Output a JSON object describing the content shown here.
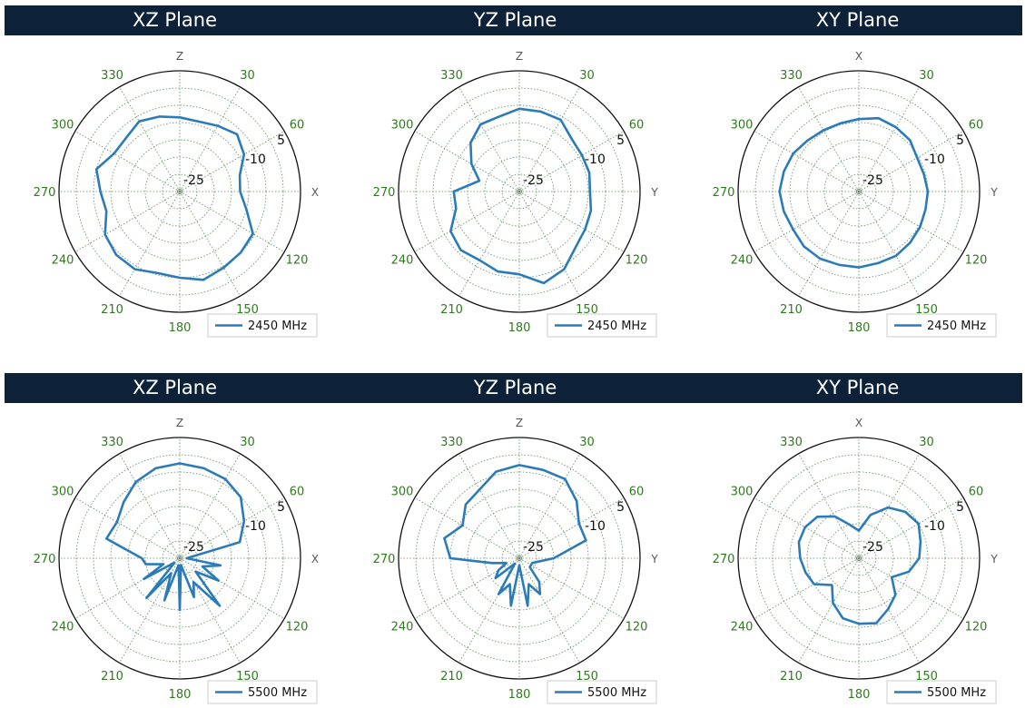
{
  "bands": [
    {
      "titles": [
        "XZ Plane",
        "YZ Plane",
        "XY Plane"
      ]
    },
    {
      "titles": [
        "XZ Plane",
        "YZ Plane",
        "XY Plane"
      ]
    }
  ],
  "colors": {
    "band": "#0d2238",
    "trace": "#2b7bb9",
    "tick": "#2f7a1f",
    "grid": "#5f8a5f"
  },
  "chart_data": [
    {
      "type": "line",
      "plane": "XZ",
      "top_axis": "Z",
      "right_axis": "X",
      "series": [
        {
          "name": "2450 MHz",
          "angles": [
            0,
            15,
            30,
            45,
            60,
            75,
            90,
            105,
            120,
            135,
            150,
            165,
            180,
            195,
            210,
            225,
            240,
            255,
            270,
            285,
            300,
            315,
            330,
            345
          ],
          "values": [
            -8.5,
            -9,
            -8,
            -6.5,
            -8.5,
            -12,
            -12.5,
            -10,
            -5.5,
            -5,
            -4.5,
            -3.5,
            -5,
            -5.5,
            -4,
            -4,
            -5,
            -8,
            -7,
            -5,
            -8,
            -8,
            -6.5,
            -7.5
          ]
        }
      ],
      "angular_ticks": [
        0,
        30,
        60,
        90,
        120,
        150,
        180,
        210,
        240,
        270,
        300,
        330
      ],
      "angular_tick_labels": [
        "",
        "30",
        "60",
        "",
        "120",
        "150",
        "180",
        "210",
        "240",
        "270",
        "300",
        "330"
      ],
      "radial_labels": [
        "-25",
        "-10",
        "5"
      ],
      "rlim": [
        -30,
        5
      ],
      "grid": true,
      "legend": "bottom-right"
    },
    {
      "type": "line",
      "plane": "YZ",
      "top_axis": "Z",
      "right_axis": "Y",
      "series": [
        {
          "name": "2450 MHz",
          "angles": [
            0,
            15,
            30,
            45,
            60,
            75,
            90,
            105,
            120,
            135,
            150,
            165,
            180,
            195,
            210,
            225,
            240,
            255,
            270,
            285,
            300,
            315,
            330,
            345
          ],
          "values": [
            -6,
            -6,
            -6,
            -8.5,
            -9,
            -9,
            -9.5,
            -8.5,
            -8,
            -7,
            -4,
            -2.5,
            -6,
            -6,
            -7,
            -6,
            -7,
            -11,
            -11,
            -18,
            -14,
            -10,
            -7.5,
            -7.5
          ]
        }
      ],
      "angular_ticks": [
        0,
        30,
        60,
        90,
        120,
        150,
        180,
        210,
        240,
        270,
        300,
        330
      ],
      "angular_tick_labels": [
        "",
        "30",
        "60",
        "",
        "120",
        "150",
        "180",
        "210",
        "240",
        "270",
        "300",
        "330"
      ],
      "radial_labels": [
        "-25",
        "-10",
        "5"
      ],
      "rlim": [
        -30,
        5
      ],
      "grid": true,
      "legend": "bottom-right"
    },
    {
      "type": "line",
      "plane": "XY",
      "top_axis": "X",
      "right_axis": "Y",
      "series": [
        {
          "name": "2450 MHz",
          "angles": [
            0,
            15,
            30,
            45,
            60,
            75,
            90,
            105,
            120,
            135,
            150,
            165,
            180,
            195,
            210,
            225,
            240,
            255,
            270,
            285,
            300,
            315,
            330,
            345
          ],
          "values": [
            -9,
            -8,
            -8.5,
            -9,
            -10.5,
            -10.5,
            -10,
            -10,
            -9.5,
            -9,
            -8.5,
            -8.5,
            -8,
            -8,
            -7.5,
            -7.5,
            -8,
            -7.5,
            -7,
            -7.5,
            -8,
            -9,
            -9.5,
            -9.5
          ]
        }
      ],
      "angular_ticks": [
        0,
        30,
        60,
        90,
        120,
        150,
        180,
        210,
        240,
        270,
        300,
        330
      ],
      "angular_tick_labels": [
        "",
        "30",
        "60",
        "",
        "120",
        "150",
        "180",
        "210",
        "240",
        "270",
        "300",
        "330"
      ],
      "radial_labels": [
        "-25",
        "-10",
        "5"
      ],
      "rlim": [
        -30,
        5
      ],
      "grid": true,
      "legend": "bottom-right"
    },
    {
      "type": "line",
      "plane": "XZ",
      "top_axis": "Z",
      "right_axis": "X",
      "series": [
        {
          "name": "5500 MHz",
          "angles": [
            0,
            15,
            30,
            45,
            60,
            75,
            90,
            100,
            110,
            120,
            130,
            140,
            150,
            160,
            170,
            180,
            190,
            200,
            210,
            220,
            230,
            240,
            250,
            260,
            270,
            285,
            300,
            315,
            330,
            345
          ],
          "values": [
            -2.5,
            -3,
            -3.5,
            -5,
            -8.5,
            -12,
            -28,
            -18,
            -23,
            -17,
            -24,
            -12,
            -22,
            -18,
            -28,
            -15,
            -28,
            -17,
            -25,
            -15,
            -28,
            -18,
            -25,
            -20,
            -19,
            -8,
            -9,
            -7,
            -4.5,
            -3
          ]
        }
      ],
      "angular_ticks": [
        0,
        30,
        60,
        90,
        120,
        150,
        180,
        210,
        240,
        270,
        300,
        330
      ],
      "angular_tick_labels": [
        "",
        "30",
        "60",
        "",
        "120",
        "150",
        "180",
        "210",
        "240",
        "270",
        "300",
        "330"
      ],
      "radial_labels": [
        "-25",
        "-10",
        "5"
      ],
      "rlim": [
        -30,
        5
      ],
      "grid": true,
      "legend": "bottom-right"
    },
    {
      "type": "line",
      "plane": "YZ",
      "top_axis": "Z",
      "right_axis": "Y",
      "series": [
        {
          "name": "5500 MHz",
          "angles": [
            0,
            15,
            30,
            45,
            60,
            75,
            90,
            110,
            130,
            140,
            150,
            160,
            170,
            180,
            190,
            200,
            210,
            220,
            230,
            240,
            250,
            260,
            270,
            285,
            300,
            315,
            330,
            345
          ],
          "values": [
            -3,
            -3.5,
            -3.5,
            -6.5,
            -10,
            -10,
            -20,
            -26,
            -26,
            -21,
            -18,
            -22,
            -16,
            -28,
            -16,
            -22,
            -18,
            -28,
            -21,
            -23,
            -26,
            -22,
            -10,
            -7.5,
            -11,
            -8,
            -7,
            -4
          ]
        }
      ],
      "angular_ticks": [
        0,
        30,
        60,
        90,
        120,
        150,
        180,
        210,
        240,
        270,
        300,
        330
      ],
      "angular_tick_labels": [
        "",
        "30",
        "60",
        "",
        "120",
        "150",
        "180",
        "210",
        "240",
        "270",
        "300",
        "330"
      ],
      "radial_labels": [
        "-25",
        "-10",
        "5"
      ],
      "rlim": [
        -30,
        5
      ],
      "grid": true,
      "legend": "bottom-right"
    },
    {
      "type": "line",
      "plane": "XY",
      "top_axis": "X",
      "right_axis": "Y",
      "series": [
        {
          "name": "5500 MHz",
          "angles": [
            0,
            15,
            30,
            45,
            60,
            75,
            90,
            105,
            120,
            135,
            150,
            165,
            180,
            195,
            210,
            225,
            240,
            255,
            270,
            285,
            300,
            315,
            330,
            345
          ],
          "values": [
            -22,
            -17,
            -13,
            -11,
            -10,
            -11.5,
            -12.5,
            -15,
            -19,
            -15,
            -13,
            -10.5,
            -11,
            -12,
            -15,
            -19,
            -15,
            -14,
            -13,
            -12,
            -12,
            -13,
            -16,
            -20
          ]
        }
      ],
      "angular_ticks": [
        0,
        30,
        60,
        90,
        120,
        150,
        180,
        210,
        240,
        270,
        300,
        330
      ],
      "angular_tick_labels": [
        "",
        "30",
        "60",
        "",
        "120",
        "150",
        "180",
        "210",
        "240",
        "270",
        "300",
        "330"
      ],
      "radial_labels": [
        "-25",
        "-10",
        "5"
      ],
      "rlim": [
        -30,
        5
      ],
      "grid": true,
      "legend": "bottom-right"
    }
  ]
}
